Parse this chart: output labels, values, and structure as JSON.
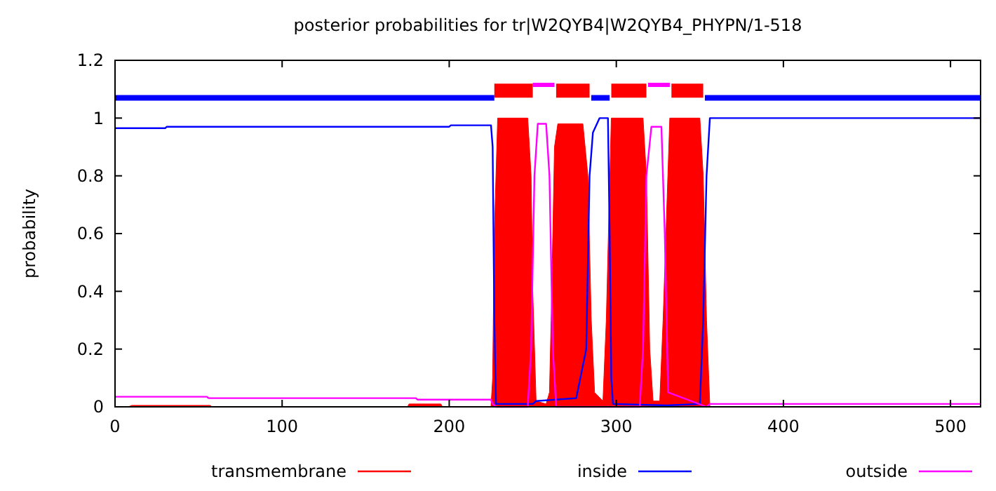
{
  "chart_data": {
    "type": "line",
    "title": "posterior probabilities for tr|W2QYB4|W2QYB4_PHYPN/1-518",
    "ylabel": "probability",
    "xlim": [
      0,
      518
    ],
    "ylim": [
      0,
      1.2
    ],
    "xticks": [
      0,
      100,
      200,
      300,
      400,
      500
    ],
    "yticks": [
      0,
      0.2,
      0.4,
      0.6,
      0.8,
      1,
      1.2
    ],
    "legend": "bottom",
    "series": [
      {
        "name": "transmembrane",
        "type": "area",
        "color": "#ff0000",
        "x": [
          0,
          8,
          10,
          57,
          58,
          175,
          176,
          195,
          196,
          225,
          226,
          227,
          229,
          247,
          249,
          250,
          252,
          258,
          260,
          261,
          263,
          265,
          280,
          283,
          285,
          287,
          292,
          294,
          297,
          316,
          318,
          320,
          322,
          326,
          328,
          332,
          350,
          352,
          354,
          356,
          518
        ],
        "values": [
          0,
          0,
          0.005,
          0.005,
          0,
          0,
          0.01,
          0.01,
          0,
          0,
          0.1,
          0.6,
          1,
          1,
          0.8,
          0.4,
          0.02,
          0.01,
          0.05,
          0.3,
          0.9,
          0.98,
          0.98,
          0.8,
          0.3,
          0.05,
          0.02,
          0.3,
          1,
          1,
          0.8,
          0.2,
          0.02,
          0.02,
          0.3,
          1,
          1,
          0.8,
          0.3,
          0,
          0
        ]
      },
      {
        "name": "inside",
        "color": "#0000ff",
        "x": [
          0,
          30,
          31,
          200,
          201,
          225,
          226,
          227,
          228,
          250,
          252,
          276,
          282,
          284,
          286,
          290,
          295,
          296,
          297,
          298,
          330,
          350,
          352,
          354,
          356,
          518
        ],
        "values": [
          0.965,
          0.965,
          0.97,
          0.97,
          0.975,
          0.975,
          0.9,
          0.3,
          0.01,
          0.01,
          0.02,
          0.03,
          0.2,
          0.8,
          0.95,
          1,
          1,
          0.6,
          0.1,
          0.01,
          0.005,
          0.01,
          0.3,
          0.8,
          1,
          1
        ]
      },
      {
        "name": "outside",
        "color": "#ff00ff",
        "x": [
          0,
          55,
          56,
          180,
          181,
          225,
          226,
          228,
          247,
          249,
          251,
          253,
          258,
          260,
          262,
          264,
          314,
          316,
          318,
          321,
          327,
          329,
          331,
          354,
          356,
          518
        ],
        "values": [
          0.035,
          0.035,
          0.03,
          0.03,
          0.025,
          0.025,
          0.01,
          0,
          0,
          0.2,
          0.8,
          0.98,
          0.98,
          0.8,
          0.2,
          0,
          0,
          0.2,
          0.8,
          0.97,
          0.97,
          0.6,
          0.05,
          0,
          0.01,
          0.01
        ]
      },
      {
        "color": "#0000ff",
        "x": [
          0,
          227,
          228,
          284,
          285,
          296,
          297,
          352,
          353,
          518
        ],
        "values": [
          1.07,
          1.07,
          null,
          null,
          1.07,
          1.07,
          null,
          null,
          1.07,
          1.07
        ]
      },
      {
        "color": "#ff0000",
        "x": [
          227,
          250,
          251,
          263,
          264,
          284,
          285,
          296,
          297,
          318,
          319,
          332,
          333,
          352
        ],
        "values": [
          1.095,
          1.095,
          null,
          null,
          1.095,
          1.095,
          null,
          null,
          1.095,
          1.095,
          null,
          null,
          1.095,
          1.095
        ]
      },
      {
        "color": "#ff00ff",
        "x": [
          250,
          263,
          264,
          318,
          319,
          332
        ],
        "values": [
          1.115,
          1.115,
          null,
          null,
          1.115,
          1.115
        ]
      }
    ]
  }
}
